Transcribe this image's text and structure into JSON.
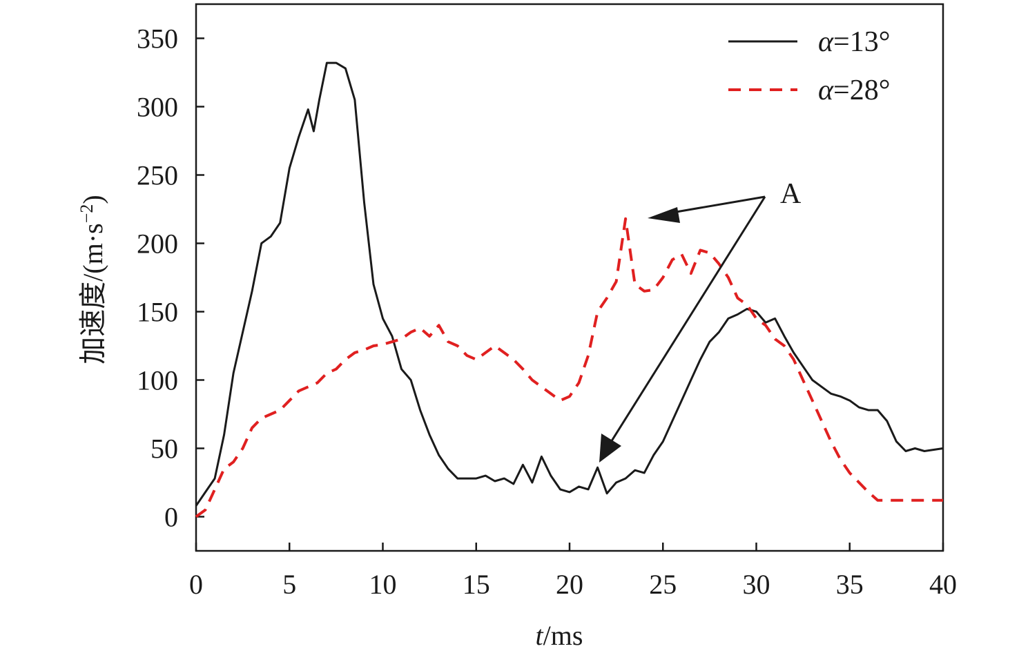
{
  "chart_data": {
    "type": "line",
    "xlabel_var": "t",
    "xlabel_unit": "/ms",
    "ylabel": "加速度/(m·s",
    "ylabel_sup": "−2",
    "ylabel_close": ")",
    "xlim": [
      0,
      40
    ],
    "ylim": [
      -25,
      375
    ],
    "xticks": [
      0,
      5,
      10,
      15,
      20,
      25,
      30,
      35,
      40
    ],
    "yticks": [
      0,
      50,
      100,
      150,
      200,
      250,
      300,
      350
    ],
    "grid": false,
    "legend_position": "top-right",
    "annotation": {
      "label": "A"
    },
    "series": [
      {
        "name_var": "α",
        "name_rest": "=13°",
        "color": "#1a1a1a",
        "dash": "solid",
        "x": [
          0,
          0.5,
          1,
          1.5,
          2,
          2.5,
          3,
          3.5,
          4,
          4.5,
          5,
          5.5,
          6,
          6.3,
          6.6,
          7,
          7.5,
          8,
          8.5,
          9,
          9.5,
          10,
          10.5,
          11,
          11.5,
          12,
          12.5,
          13,
          13.5,
          14,
          14.5,
          15,
          15.5,
          16,
          16.5,
          17,
          17.5,
          18,
          18.5,
          19,
          19.5,
          20,
          20.5,
          21,
          21.5,
          22,
          22.5,
          23,
          23.5,
          24,
          24.5,
          25,
          25.5,
          26,
          26.5,
          27,
          27.5,
          28,
          28.5,
          29,
          29.5,
          30,
          30.5,
          31,
          31.5,
          32,
          32.5,
          33,
          33.5,
          34,
          34.5,
          35,
          35.5,
          36,
          36.5,
          37,
          37.5,
          38,
          38.5,
          39,
          39.5,
          40
        ],
        "y": [
          8,
          18,
          28,
          60,
          105,
          135,
          165,
          200,
          205,
          215,
          255,
          278,
          298,
          282,
          305,
          332,
          332,
          328,
          305,
          230,
          170,
          145,
          132,
          108,
          100,
          78,
          60,
          45,
          35,
          28,
          28,
          28,
          30,
          26,
          28,
          24,
          38,
          25,
          44,
          30,
          20,
          18,
          22,
          20,
          36,
          17,
          25,
          28,
          34,
          32,
          45,
          55,
          70,
          85,
          100,
          115,
          128,
          135,
          145,
          148,
          152,
          150,
          142,
          145,
          132,
          120,
          110,
          100,
          95,
          90,
          88,
          85,
          80,
          78,
          78,
          70,
          55,
          48,
          50,
          48,
          49,
          50
        ]
      },
      {
        "name_var": "α",
        "name_rest": "=28°",
        "color": "#e02020",
        "dash": "dashed",
        "x": [
          0,
          0.5,
          1,
          1.5,
          2,
          2.5,
          3,
          3.5,
          4,
          4.5,
          5,
          5.5,
          6,
          6.5,
          7,
          7.5,
          8,
          8.5,
          9,
          9.5,
          10,
          10.5,
          11,
          11.5,
          12,
          12.5,
          13,
          13.5,
          14,
          14.5,
          15,
          15.5,
          16,
          16.5,
          17,
          17.5,
          18,
          18.5,
          19,
          19.5,
          20,
          20.5,
          21,
          21.5,
          22,
          22.5,
          23,
          23.5,
          24,
          24.5,
          25,
          25.5,
          26,
          26.5,
          27,
          27.5,
          28,
          28.5,
          29,
          29.5,
          30,
          30.5,
          31,
          31.5,
          32,
          32.5,
          33,
          33.5,
          34,
          34.5,
          35,
          35.5,
          36,
          36.5,
          37,
          37.5,
          38,
          38.5,
          39,
          39.5,
          40
        ],
        "y": [
          0,
          5,
          20,
          35,
          40,
          50,
          65,
          72,
          75,
          78,
          85,
          92,
          95,
          98,
          105,
          108,
          115,
          120,
          122,
          125,
          126,
          128,
          130,
          135,
          138,
          132,
          140,
          128,
          125,
          118,
          115,
          120,
          125,
          120,
          115,
          108,
          100,
          95,
          90,
          85,
          88,
          98,
          118,
          150,
          160,
          172,
          218,
          170,
          165,
          166,
          175,
          188,
          192,
          178,
          195,
          193,
          185,
          175,
          160,
          155,
          145,
          140,
          130,
          125,
          115,
          100,
          85,
          70,
          55,
          42,
          32,
          25,
          18,
          12,
          12,
          12,
          12,
          12,
          12,
          12,
          12
        ]
      }
    ]
  }
}
